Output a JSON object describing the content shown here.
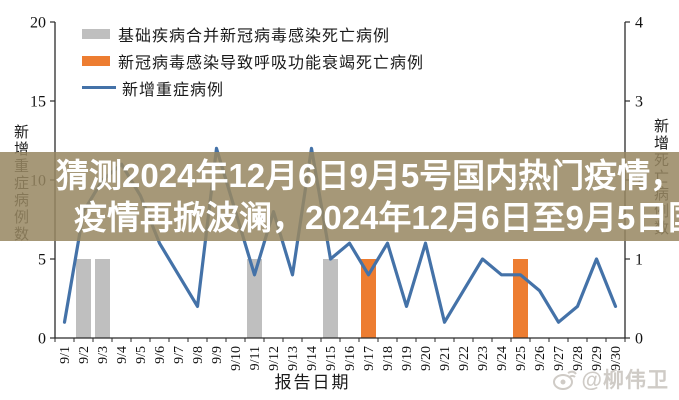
{
  "page": {
    "background": "#ffffff"
  },
  "legend": {
    "items": [
      {
        "label": "基础疾病合并新冠病毒感染死亡病例",
        "color": "#bfbfbf",
        "type": "bar"
      },
      {
        "label": "新冠病毒感染导致呼吸功能衰竭死亡病例",
        "color": "#ed7d31",
        "type": "bar"
      },
      {
        "label": "新增重症病例",
        "color": "#4472a8",
        "type": "line"
      }
    ]
  },
  "overlay": {
    "line1": "猜测2024年12月6日9月5号国内热门疫情，",
    "line2": "疫情再掀波澜，2024年12月6日至9月5日国",
    "background": "rgba(151,135,98,0.86)",
    "text_color": "#ffffff"
  },
  "watermark": {
    "handle": "@柳伟卫",
    "logo": "weibo",
    "color": "#cdc9c4"
  },
  "axis_color": "#2b2b2b",
  "chart_data": {
    "type": "bar+line",
    "title": "",
    "xlabel": "报告日期",
    "ylabel_left": "新增重症病例数",
    "ylabel_right": "新增死亡病例数",
    "ylim_left": [
      0,
      20
    ],
    "ylim_right": [
      0,
      4
    ],
    "yticks_left": [
      0,
      5,
      10,
      15,
      20
    ],
    "yticks_right": [
      0,
      1,
      2,
      3,
      4
    ],
    "grid": false,
    "legend_position": "top-left-inside",
    "categories": [
      "9/1",
      "9/2",
      "9/3",
      "9/4",
      "9/5",
      "9/6",
      "9/7",
      "9/8",
      "9/9",
      "9/10",
      "9/11",
      "9/12",
      "9/13",
      "9/14",
      "9/15",
      "9/16",
      "9/17",
      "9/18",
      "9/19",
      "9/20",
      "9/21",
      "9/22",
      "9/23",
      "9/24",
      "9/25",
      "9/26",
      "9/27",
      "9/28",
      "9/29",
      "9/30"
    ],
    "series": [
      {
        "name": "基础疾病合并新冠病毒感染死亡病例",
        "type": "bar",
        "axis": "right",
        "color": "#bfbfbf",
        "values": [
          0,
          1,
          1,
          0,
          0,
          0,
          0,
          0,
          0,
          0,
          1,
          0,
          0,
          0,
          1,
          0,
          0,
          0,
          0,
          0,
          0,
          0,
          0,
          0,
          0,
          0,
          0,
          0,
          0,
          0
        ]
      },
      {
        "name": "新冠病毒感染导致呼吸功能衰竭死亡病例",
        "type": "bar",
        "axis": "right",
        "color": "#ed7d31",
        "values": [
          0,
          0,
          0,
          0,
          0,
          0,
          0,
          0,
          0,
          0,
          0,
          0,
          0,
          0,
          0,
          0,
          1,
          0,
          0,
          0,
          0,
          0,
          0,
          0,
          1,
          0,
          0,
          0,
          0,
          0
        ]
      },
      {
        "name": "新增重症病例",
        "type": "line",
        "axis": "left",
        "color": "#4472a8",
        "values": [
          1,
          8,
          10,
          11,
          9,
          6,
          4,
          2,
          12,
          8,
          4,
          8,
          4,
          12,
          5,
          6,
          4,
          6,
          2,
          6,
          1,
          3,
          5,
          4,
          4,
          3,
          1,
          2,
          5,
          2
        ]
      }
    ],
    "note": "values 6-11 partially obscured by headline overlay band; estimated from visible slopes"
  }
}
